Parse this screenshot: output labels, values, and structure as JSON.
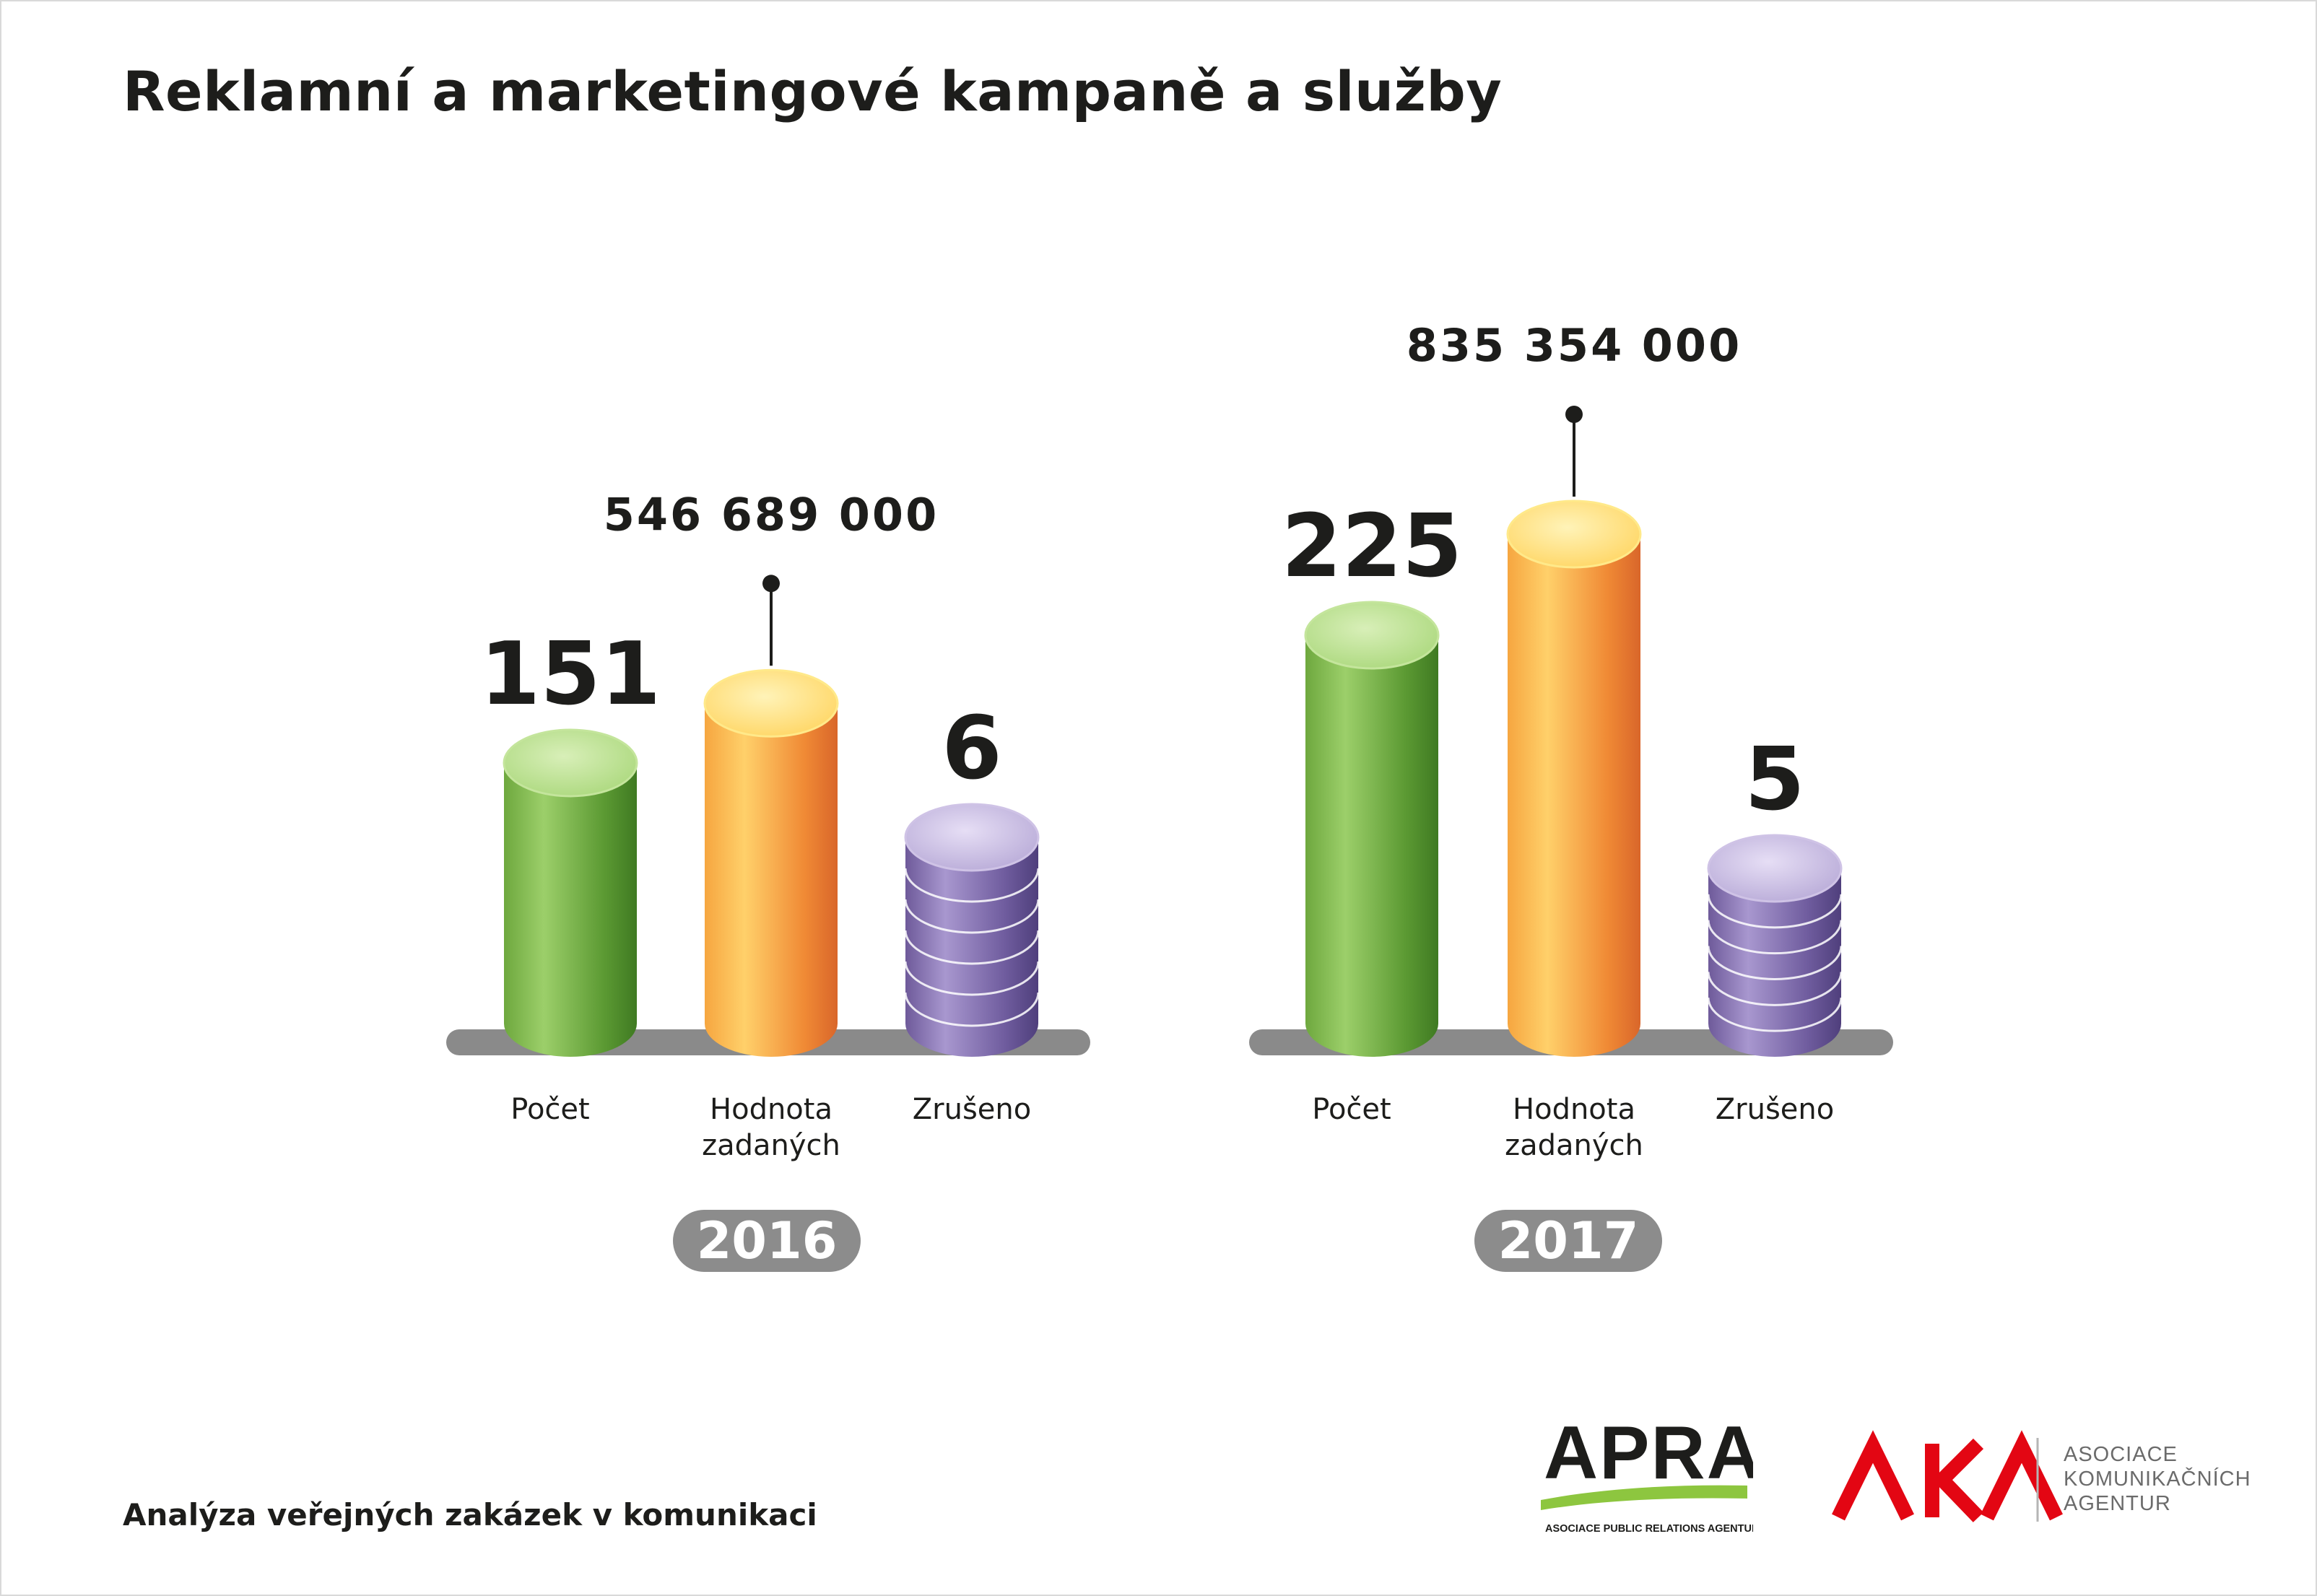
{
  "title": "Reklamní a marketingové kampaně a služby",
  "footer": "Analýza veřejných zakázek v komunikaci",
  "logos": {
    "apra": {
      "wordmark": "APRA",
      "tagline": "ASOCIACE PUBLIC RELATIONS AGENTUR",
      "color": "#8dc63f"
    },
    "aka": {
      "mark": "AKA",
      "lines": [
        "ASOCIACE",
        "KOMUNIKAČNÍCH",
        "AGENTUR"
      ],
      "color": "#e30613"
    }
  },
  "chart_data": [
    {
      "type": "bar",
      "group_label": "2016",
      "categories": [
        "Počet",
        "Hodnota\nzadaných",
        "Zrušeno"
      ],
      "values": [
        151,
        546689000,
        6
      ],
      "value_labels": [
        "151",
        "546 689 000",
        "6"
      ],
      "colors": [
        "#6aa83a",
        "#f39a3c",
        "#8a77b0"
      ]
    },
    {
      "type": "bar",
      "group_label": "2017",
      "categories": [
        "Počet",
        "Hodnota\nzadaných",
        "Zrušeno"
      ],
      "values": [
        225,
        835354000,
        5
      ],
      "value_labels": [
        "225",
        "835 354 000",
        "5"
      ],
      "colors": [
        "#6aa83a",
        "#f39a3c",
        "#8a77b0"
      ]
    }
  ]
}
